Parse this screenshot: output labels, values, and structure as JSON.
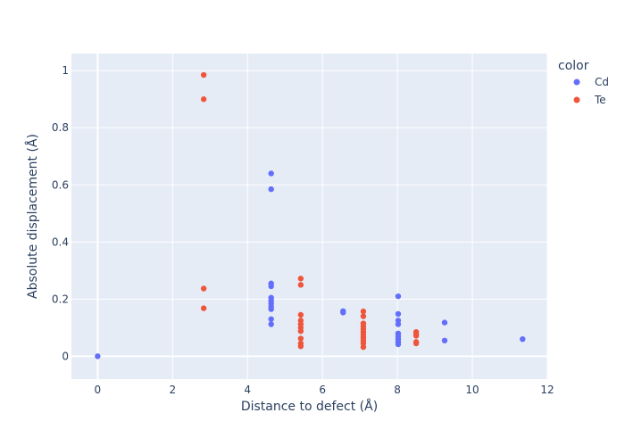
{
  "chart_data": {
    "type": "scatter",
    "xlabel": "Distance to defect (Å)",
    "ylabel": "Absolute displacement (Å)",
    "xlim": [
      -0.7,
      12.0
    ],
    "ylim": [
      -0.08,
      1.06
    ],
    "x_ticks": [
      0,
      2,
      4,
      6,
      8,
      10,
      12
    ],
    "y_ticks": [
      0,
      0.2,
      0.4,
      0.6,
      0.8,
      1
    ],
    "x_tick_labels": [
      "0",
      "2",
      "4",
      "6",
      "8",
      "10",
      "12"
    ],
    "y_tick_labels": [
      "0",
      "0.2",
      "0.4",
      "0.6",
      "0.8",
      "1"
    ],
    "grid": true,
    "legend": {
      "title": "color",
      "placement": "top-right"
    },
    "series": [
      {
        "name": "Cd",
        "color": "#636efa",
        "points": [
          [
            0,
            0.0
          ],
          [
            4.63,
            0.64
          ],
          [
            4.63,
            0.585
          ],
          [
            4.63,
            0.255
          ],
          [
            4.63,
            0.245
          ],
          [
            4.63,
            0.205
          ],
          [
            4.63,
            0.195
          ],
          [
            4.63,
            0.185
          ],
          [
            4.63,
            0.175
          ],
          [
            4.63,
            0.165
          ],
          [
            4.63,
            0.13
          ],
          [
            4.63,
            0.112
          ],
          [
            6.55,
            0.158
          ],
          [
            6.55,
            0.153
          ],
          [
            8.02,
            0.21
          ],
          [
            8.02,
            0.148
          ],
          [
            8.02,
            0.125
          ],
          [
            8.02,
            0.112
          ],
          [
            8.02,
            0.08
          ],
          [
            8.02,
            0.07
          ],
          [
            8.02,
            0.06
          ],
          [
            8.02,
            0.05
          ],
          [
            8.02,
            0.042
          ],
          [
            9.26,
            0.118
          ],
          [
            9.26,
            0.055
          ],
          [
            11.34,
            0.06
          ]
        ]
      },
      {
        "name": "Te",
        "color": "#ef553b",
        "points": [
          [
            2.83,
            0.985
          ],
          [
            2.83,
            0.9
          ],
          [
            2.83,
            0.237
          ],
          [
            2.83,
            0.168
          ],
          [
            5.42,
            0.272
          ],
          [
            5.42,
            0.25
          ],
          [
            5.42,
            0.145
          ],
          [
            5.42,
            0.125
          ],
          [
            5.42,
            0.112
          ],
          [
            5.42,
            0.1
          ],
          [
            5.42,
            0.088
          ],
          [
            5.42,
            0.062
          ],
          [
            5.42,
            0.045
          ],
          [
            5.42,
            0.035
          ],
          [
            7.09,
            0.157
          ],
          [
            7.09,
            0.14
          ],
          [
            7.09,
            0.115
          ],
          [
            7.09,
            0.105
          ],
          [
            7.09,
            0.095
          ],
          [
            7.09,
            0.085
          ],
          [
            7.09,
            0.075
          ],
          [
            7.09,
            0.065
          ],
          [
            7.09,
            0.055
          ],
          [
            7.09,
            0.045
          ],
          [
            7.09,
            0.032
          ],
          [
            8.5,
            0.085
          ],
          [
            8.5,
            0.078
          ],
          [
            8.5,
            0.072
          ],
          [
            8.5,
            0.05
          ],
          [
            8.5,
            0.045
          ]
        ]
      }
    ]
  }
}
